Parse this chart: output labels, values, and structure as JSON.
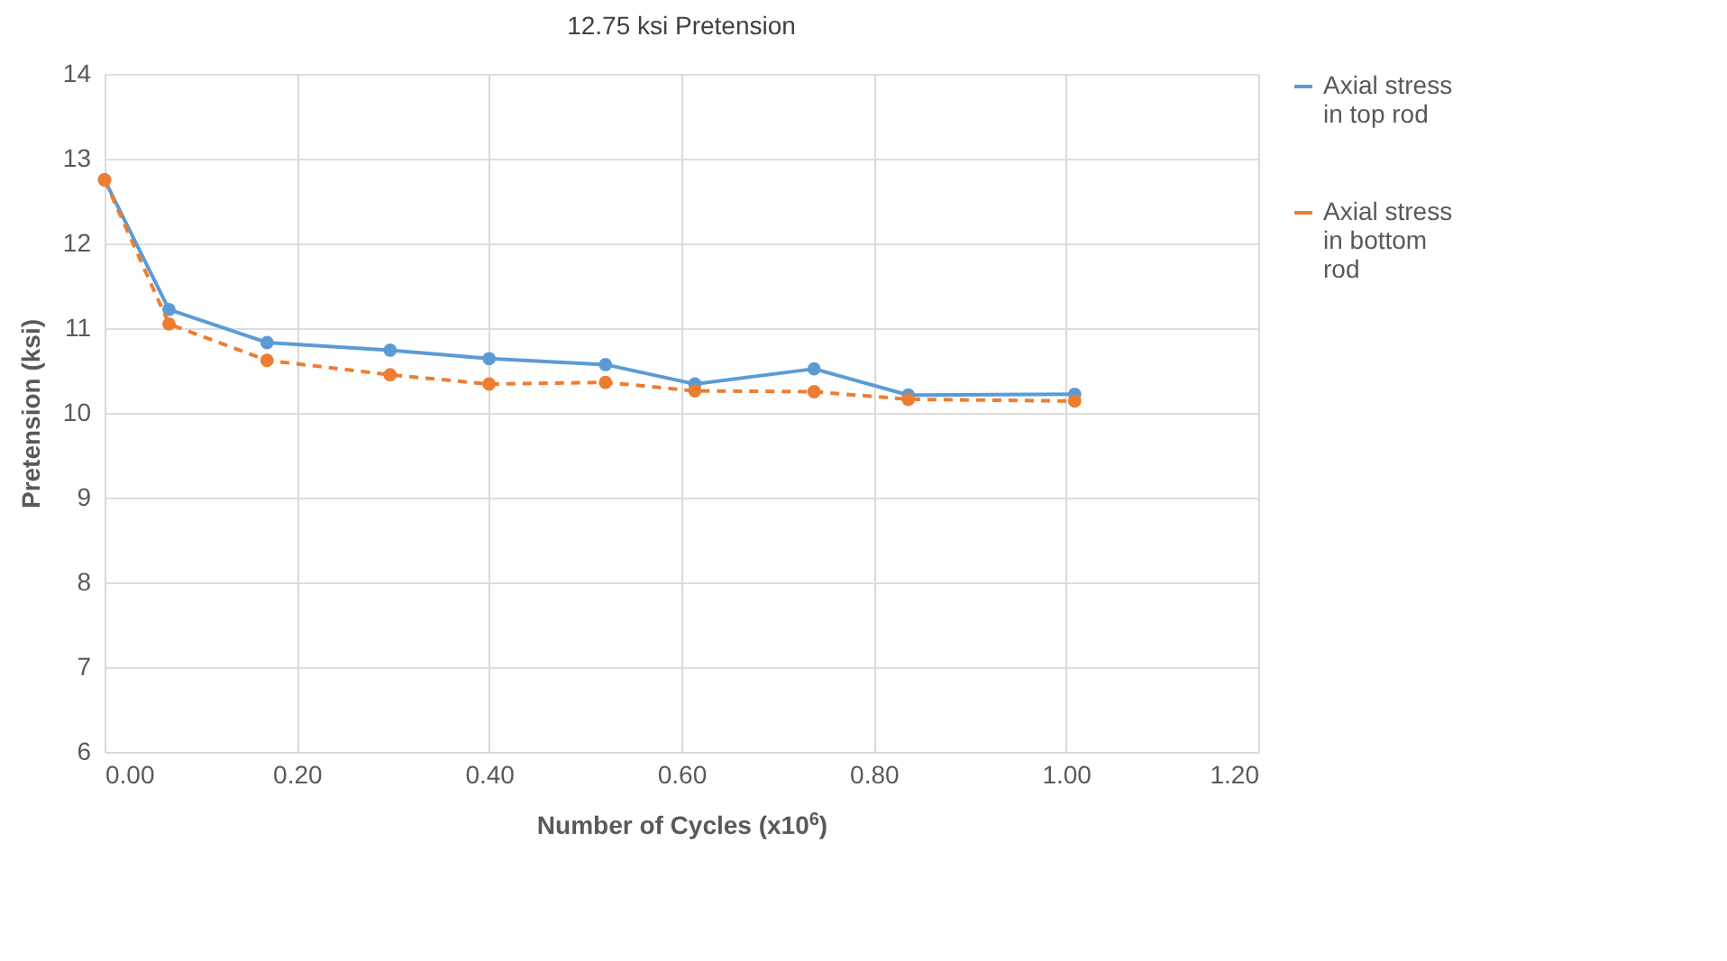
{
  "chart_data": {
    "type": "line",
    "title": "12.75 ksi Pretension",
    "xlabel": "Number of Cycles (x10$^{6}$)",
    "ylabel": "Pretension (ksi)",
    "x": [
      0,
      0.067,
      0.169,
      0.297,
      0.4,
      0.521,
      0.614,
      0.738,
      0.836,
      1.009
    ],
    "series": [
      {
        "name": "Axial stress in top rod",
        "color": "#5b9bd5",
        "line_style": "solid",
        "values": [
          12.75,
          11.22,
          10.83,
          10.74,
          10.64,
          10.57,
          10.34,
          10.52,
          10.21,
          10.22
        ]
      },
      {
        "name": "Axial stress in bottom rod",
        "color": "#ed7d31",
        "line_style": "dashed",
        "values": [
          12.75,
          11.05,
          10.62,
          10.45,
          10.34,
          10.36,
          10.26,
          10.25,
          10.16,
          10.14
        ]
      }
    ],
    "xlim": [
      0,
      1.2
    ],
    "xticks": [
      {
        "value": 0,
        "label": "0.00"
      },
      {
        "value": 0.2,
        "label": "0.20"
      },
      {
        "value": 0.4,
        "label": "0.40"
      },
      {
        "value": 0.6,
        "label": "0.60"
      },
      {
        "value": 0.8,
        "label": "0.80"
      },
      {
        "value": 1,
        "label": "1.00"
      },
      {
        "value": 1.2,
        "label": "1.20"
      }
    ],
    "ylim": [
      6,
      14
    ],
    "yticks": [
      6,
      7,
      8,
      9,
      10,
      11,
      12,
      13,
      14
    ],
    "grid": true,
    "legend": "right",
    "marker": "circle"
  }
}
